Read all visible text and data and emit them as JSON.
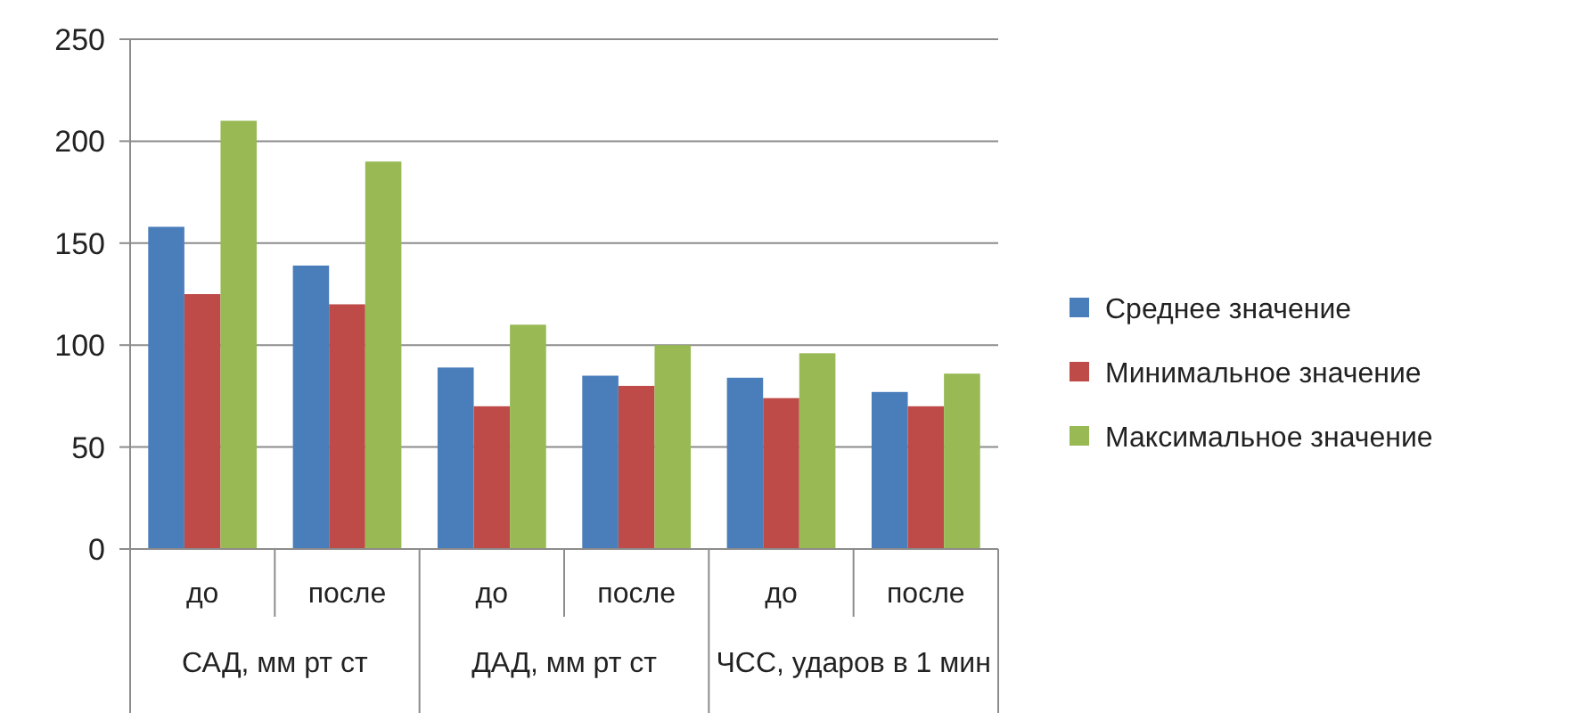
{
  "chart_data": {
    "type": "bar",
    "categories": [
      "до",
      "после",
      "до",
      "после",
      "до",
      "после"
    ],
    "series": [
      {
        "name": "Среднее значение",
        "color": "#4a7ebb",
        "values": [
          158,
          139,
          89,
          85,
          84,
          77
        ]
      },
      {
        "name": "Минимальное значение",
        "color": "#be4b48",
        "values": [
          125,
          120,
          70,
          80,
          74,
          70
        ]
      },
      {
        "name": "Максимальное значение",
        "color": "#98b954",
        "values": [
          210,
          190,
          110,
          100,
          96,
          86
        ]
      }
    ],
    "annotations": [
      "САД, мм рт ст",
      "ДАД, мм рт ст",
      "ЧСС, ударов в 1 мин"
    ],
    "ylim": [
      0,
      250
    ],
    "yticks": [
      0,
      50,
      100,
      150,
      200,
      250
    ],
    "grid": "y",
    "legend": "right"
  }
}
